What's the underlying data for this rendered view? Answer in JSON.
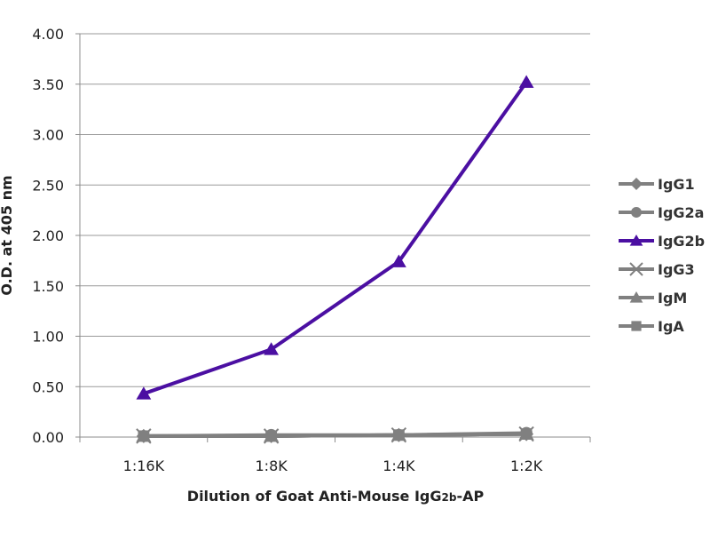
{
  "chart_data": {
    "type": "line",
    "xlabel": {
      "prefix": "Dilution of Goat Anti-Mouse IgG",
      "subscript": "2b",
      "suffix": "-AP"
    },
    "ylabel": "O.D. at 405 nm",
    "categories": [
      "1:16K",
      "1:8K",
      "1:4K",
      "1:2K"
    ],
    "ylim": [
      0,
      4
    ],
    "yticks": [
      "0.00",
      "0.50",
      "1.00",
      "1.50",
      "2.00",
      "2.50",
      "3.00",
      "3.50",
      "4.00"
    ],
    "grid": true,
    "legend_position": "right",
    "series": [
      {
        "name": "IgG1",
        "values": [
          0.01,
          0.01,
          0.02,
          0.03
        ],
        "color": "#808080",
        "marker": "diamond"
      },
      {
        "name": "IgG2a",
        "values": [
          0.01,
          0.02,
          0.02,
          0.04
        ],
        "color": "#808080",
        "marker": "circle"
      },
      {
        "name": "IgG2b",
        "values": [
          0.43,
          0.87,
          1.74,
          3.52
        ],
        "color": "#4b0fa2",
        "marker": "triangle"
      },
      {
        "name": "IgG3",
        "values": [
          0.01,
          0.01,
          0.02,
          0.03
        ],
        "color": "#808080",
        "marker": "x"
      },
      {
        "name": "IgM",
        "values": [
          0.01,
          0.01,
          0.02,
          0.03
        ],
        "color": "#808080",
        "marker": "triangle"
      },
      {
        "name": "IgA",
        "values": [
          0.01,
          0.01,
          0.02,
          0.03
        ],
        "color": "#808080",
        "marker": "square"
      }
    ]
  }
}
